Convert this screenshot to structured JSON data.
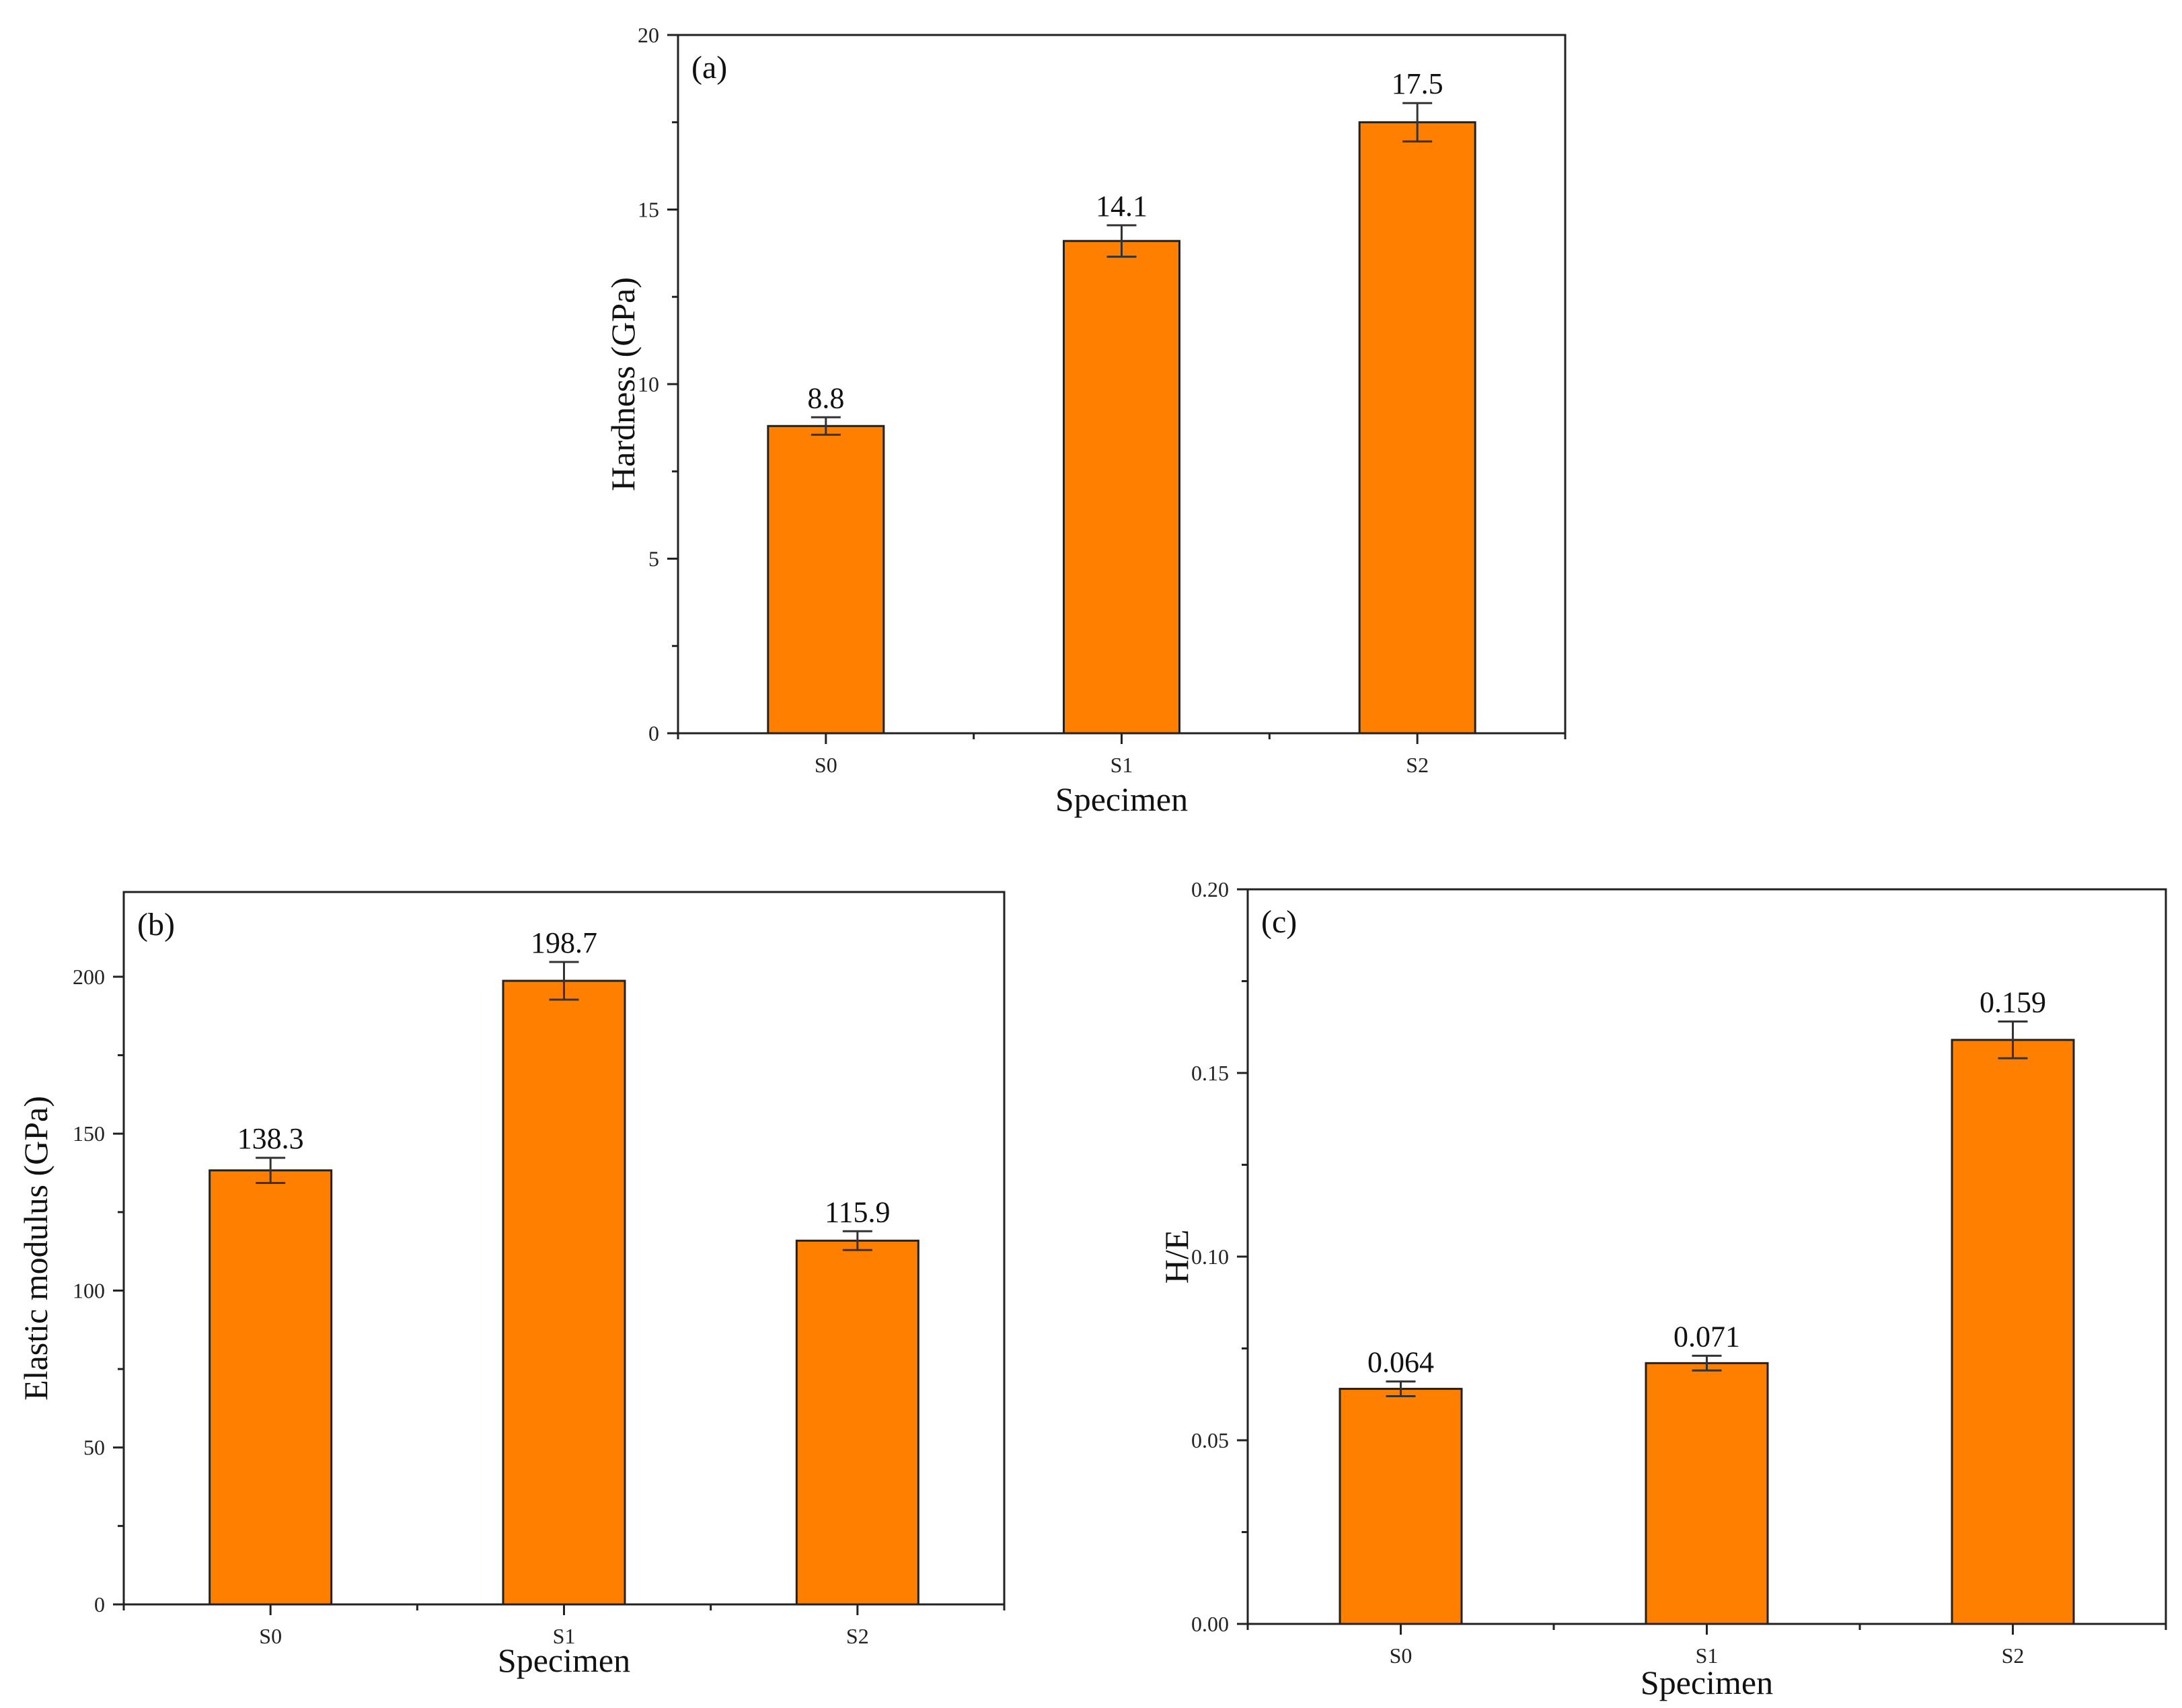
{
  "chart_data": [
    {
      "type": "bar",
      "panel_label": "(a)",
      "categories": [
        "S0",
        "S1",
        "S2"
      ],
      "values": [
        8.8,
        14.1,
        17.5
      ],
      "errors": [
        0.25,
        0.45,
        0.55
      ],
      "value_labels": [
        "8.8",
        "14.1",
        "17.5"
      ],
      "xlabel": "Specimen",
      "ylabel": "Hardness (GPa)",
      "ylim": [
        0,
        20
      ],
      "yticks": [
        0,
        5,
        10,
        15,
        20
      ],
      "ytick_labels": [
        "0",
        "5",
        "10",
        "15",
        "20"
      ],
      "bar_color": "#ff8000"
    },
    {
      "type": "bar",
      "panel_label": "(b)",
      "categories": [
        "S0",
        "S1",
        "S2"
      ],
      "values": [
        138.3,
        198.7,
        115.9
      ],
      "errors": [
        4.0,
        6.0,
        3.0
      ],
      "value_labels": [
        "138.3",
        "198.7",
        "115.9"
      ],
      "xlabel": "Specimen",
      "ylabel": "Elastic modulus (GPa)",
      "ylim": [
        0,
        227
      ],
      "yticks": [
        0,
        50,
        100,
        150,
        200
      ],
      "ytick_labels": [
        "0",
        "50",
        "100",
        "150",
        "200"
      ],
      "bar_color": "#ff8000"
    },
    {
      "type": "bar",
      "panel_label": "(c)",
      "categories": [
        "S0",
        "S1",
        "S2"
      ],
      "values": [
        0.064,
        0.071,
        0.159
      ],
      "errors": [
        0.002,
        0.002,
        0.005
      ],
      "value_labels": [
        "0.064",
        "0.071",
        "0.159"
      ],
      "xlabel": "Specimen",
      "ylabel": "H/E",
      "ylim": [
        0,
        0.2
      ],
      "yticks": [
        0,
        0.05,
        0.1,
        0.15,
        0.2
      ],
      "ytick_labels": [
        "0.00",
        "0.05",
        "0.10",
        "0.15",
        "0.20"
      ],
      "bar_color": "#ff8000"
    }
  ]
}
